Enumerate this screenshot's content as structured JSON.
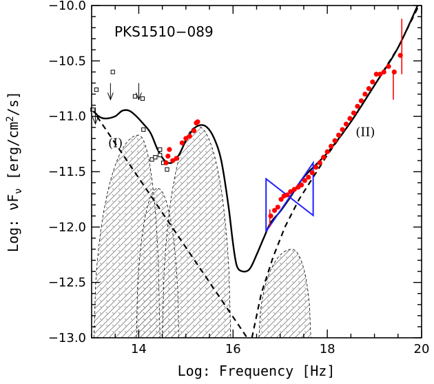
{
  "chart_data": {
    "type": "scatter",
    "title": "PKS1510−089",
    "xlabel": "Log: Frequency [Hz]",
    "ylabel_prefix": "Log: νF",
    "ylabel_sub": "ν",
    "ylabel_unit": " [erg/cm",
    "ylabel_sup": "2",
    "ylabel_tail": "/s]",
    "xlim": [
      13,
      20
    ],
    "ylim": [
      -13.0,
      -10.0
    ],
    "x_ticks": [
      {
        "value": 14,
        "label": "14"
      },
      {
        "value": 16,
        "label": "16"
      },
      {
        "value": 18,
        "label": "18"
      },
      {
        "value": 20,
        "label": "20"
      }
    ],
    "y_ticks": [
      {
        "value": -10.0,
        "label": "−10.0"
      },
      {
        "value": -10.5,
        "label": "−10.5"
      },
      {
        "value": -11.0,
        "label": "−11.0"
      },
      {
        "value": -11.5,
        "label": "−11.5"
      },
      {
        "value": -12.0,
        "label": "−12.0"
      },
      {
        "value": -12.5,
        "label": "−12.5"
      },
      {
        "value": -13.0,
        "label": "−13.0"
      }
    ],
    "annotations": [
      {
        "text": "(I)",
        "x": 13.35,
        "y": -11.28
      },
      {
        "text": "(II)",
        "x": 18.6,
        "y": -11.18
      }
    ],
    "colors": {
      "red": "#ff0000",
      "blue": "#1f1fff",
      "black": "#000000",
      "hatch": "#888888"
    },
    "series": [
      {
        "name": "archival-points",
        "style": "open-square",
        "points": [
          [
            13.02,
            -10.94
          ],
          [
            13.1,
            -10.76
          ],
          [
            13.45,
            -10.6
          ],
          [
            13.92,
            -10.82
          ],
          [
            14.08,
            -10.84
          ],
          [
            14.1,
            -11.12
          ],
          [
            14.28,
            -11.39
          ],
          [
            14.45,
            -11.35
          ],
          [
            14.52,
            -11.42
          ],
          [
            14.6,
            -11.48
          ],
          [
            14.45,
            -11.3
          ],
          [
            14.35,
            -11.37
          ]
        ]
      },
      {
        "name": "upper-limits",
        "style": "arrow-down",
        "points": [
          [
            13.08,
            -10.92
          ],
          [
            13.4,
            -10.7
          ],
          [
            14.0,
            -10.7
          ]
        ]
      },
      {
        "name": "optical-uv-points",
        "style": "red-dot",
        "points": [
          [
            14.58,
            -11.42
          ],
          [
            14.62,
            -11.36
          ],
          [
            14.65,
            -11.3
          ],
          [
            14.72,
            -11.4
          ],
          [
            14.8,
            -11.38
          ],
          [
            14.92,
            -11.24
          ],
          [
            15.0,
            -11.2
          ],
          [
            15.08,
            -11.18
          ],
          [
            15.17,
            -11.13
          ],
          [
            15.22,
            -11.06
          ],
          [
            15.25,
            -11.05
          ]
        ]
      },
      {
        "name": "x-ray-points",
        "style": "red-dot",
        "points": [
          [
            16.8,
            -11.9
          ],
          [
            16.88,
            -11.85
          ],
          [
            16.95,
            -11.82
          ],
          [
            17.02,
            -11.75
          ],
          [
            17.08,
            -11.72
          ],
          [
            17.15,
            -11.71
          ],
          [
            17.22,
            -11.68
          ],
          [
            17.3,
            -11.66
          ],
          [
            17.38,
            -11.64
          ],
          [
            17.45,
            -11.62
          ],
          [
            17.52,
            -11.58
          ],
          [
            17.6,
            -11.55
          ],
          [
            17.68,
            -11.51
          ],
          [
            17.76,
            -11.46
          ],
          [
            17.84,
            -11.42
          ],
          [
            17.92,
            -11.37
          ],
          [
            18.0,
            -11.32
          ],
          [
            18.08,
            -11.27
          ],
          [
            18.16,
            -11.22
          ],
          [
            18.24,
            -11.17
          ],
          [
            18.32,
            -11.12
          ],
          [
            18.4,
            -11.07
          ],
          [
            18.48,
            -11.02
          ],
          [
            18.56,
            -10.97
          ],
          [
            18.64,
            -10.91
          ],
          [
            18.72,
            -10.86
          ],
          [
            18.8,
            -10.8
          ],
          [
            18.88,
            -10.75
          ],
          [
            18.96,
            -10.69
          ],
          [
            19.04,
            -10.62
          ],
          [
            19.12,
            -10.62
          ],
          [
            19.2,
            -10.6
          ],
          [
            19.3,
            -10.55
          ],
          [
            19.42,
            -10.6
          ],
          [
            19.55,
            -10.45
          ]
        ]
      }
    ],
    "error_bars": [
      {
        "x": 16.78,
        "y": -11.92,
        "low": -12.0,
        "high": -11.84
      },
      {
        "x": 19.4,
        "y": -10.72,
        "low": -10.85,
        "high": -10.58
      },
      {
        "x": 19.58,
        "y": -10.38,
        "low": -10.62,
        "high": -10.12
      }
    ],
    "bowtie": {
      "x0": 16.7,
      "x1": 17.7,
      "pivot_x": 17.2,
      "pivot_y": -11.73,
      "slope_a": 0.62,
      "slope_b": -0.33
    },
    "total_curve": [
      [
        13.0,
        -10.93
      ],
      [
        13.15,
        -11.0
      ],
      [
        13.3,
        -11.02
      ],
      [
        13.5,
        -11.0
      ],
      [
        13.65,
        -10.95
      ],
      [
        13.8,
        -10.95
      ],
      [
        13.95,
        -11.0
      ],
      [
        14.1,
        -11.07
      ],
      [
        14.25,
        -11.15
      ],
      [
        14.4,
        -11.3
      ],
      [
        14.55,
        -11.4
      ],
      [
        14.7,
        -11.42
      ],
      [
        14.85,
        -11.35
      ],
      [
        15.0,
        -11.22
      ],
      [
        15.15,
        -11.12
      ],
      [
        15.3,
        -11.08
      ],
      [
        15.45,
        -11.1
      ],
      [
        15.6,
        -11.2
      ],
      [
        15.75,
        -11.4
      ],
      [
        15.9,
        -11.8
      ],
      [
        16.0,
        -12.15
      ],
      [
        16.08,
        -12.35
      ],
      [
        16.2,
        -12.4
      ],
      [
        16.35,
        -12.38
      ],
      [
        16.5,
        -12.25
      ],
      [
        16.65,
        -12.1
      ],
      [
        16.8,
        -11.96
      ],
      [
        17.0,
        -11.86
      ],
      [
        17.2,
        -11.74
      ],
      [
        17.5,
        -11.55
      ],
      [
        18.0,
        -11.33
      ],
      [
        18.5,
        -11.05
      ],
      [
        19.0,
        -10.72
      ],
      [
        19.5,
        -10.38
      ],
      [
        20.0,
        -9.92
      ]
    ],
    "dashed_lines": [
      {
        "name": "falling-component",
        "points": [
          [
            13.0,
            -10.93
          ],
          [
            16.3,
            -13.0
          ]
        ]
      },
      {
        "name": "rising-component",
        "points": [
          [
            16.4,
            -13.0
          ],
          [
            16.6,
            -12.6
          ],
          [
            16.85,
            -12.27
          ],
          [
            17.1,
            -12.0
          ],
          [
            17.4,
            -11.75
          ],
          [
            18.0,
            -11.35
          ],
          [
            18.5,
            -11.05
          ],
          [
            19.0,
            -10.72
          ],
          [
            19.5,
            -10.38
          ],
          [
            20.0,
            -9.95
          ]
        ]
      }
    ],
    "hatched_bumps": [
      {
        "name": "bump-ir",
        "x_start": 13.05,
        "x_end": 14.45,
        "peak_x": 14.0,
        "peak_y": -11.17
      },
      {
        "name": "bump-optical",
        "x_start": 13.95,
        "x_end": 14.85,
        "peak_x": 14.4,
        "peak_y": -11.65
      },
      {
        "name": "bump-uv",
        "x_start": 14.5,
        "x_end": 15.95,
        "peak_x": 15.25,
        "peak_y": -11.09
      },
      {
        "name": "bump-x",
        "x_start": 16.55,
        "x_end": 17.65,
        "peak_x": 17.25,
        "peak_y": -12.2
      }
    ]
  }
}
